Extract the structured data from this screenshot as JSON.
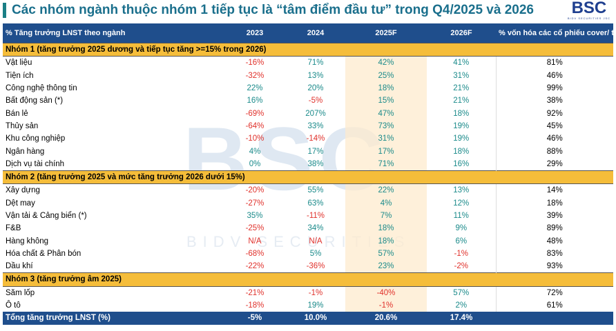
{
  "header": {
    "title": "Các nhóm ngành thuộc nhóm 1 tiếp tục là “tâm điểm đầu tư” trong Q4/2025 và 2026",
    "logo": "BSC",
    "logo_subtitle": "BIDV SECURITIES JSC"
  },
  "watermark": {
    "logo": "BSC",
    "text": "BIDV SECURITIES"
  },
  "table": {
    "columns": [
      "% Tăng trưởng LNST theo ngành",
      "2023",
      "2024",
      "2025F",
      "2026F",
      "% vốn hóa các cổ phiếu cover/ tổng vốn hóa ngành đó"
    ],
    "groups": [
      {
        "label": "Nhóm 1 (tăng trưởng 2025 dương và tiếp tục tăng >=15% trong 2026)",
        "rows": [
          [
            "Vật liệu",
            "-16%",
            "71%",
            "42%",
            "41%",
            "81%"
          ],
          [
            "Tiện ích",
            "-32%",
            "13%",
            "25%",
            "31%",
            "46%"
          ],
          [
            "Công nghệ thông tin",
            "22%",
            "20%",
            "18%",
            "21%",
            "99%"
          ],
          [
            "Bất động sản (*)",
            "16%",
            "-5%",
            "15%",
            "21%",
            "38%"
          ],
          [
            "Bán lẻ",
            "-69%",
            "207%",
            "47%",
            "18%",
            "92%"
          ],
          [
            "Thủy sản",
            "-64%",
            "33%",
            "73%",
            "19%",
            "45%"
          ],
          [
            "Khu công nghiệp",
            "-10%",
            "-14%",
            "31%",
            "19%",
            "46%"
          ],
          [
            "Ngân hàng",
            "4%",
            "17%",
            "17%",
            "18%",
            "88%"
          ],
          [
            "Dịch vụ tài chính",
            "0%",
            "38%",
            "71%",
            "16%",
            "29%"
          ]
        ]
      },
      {
        "label": "Nhóm 2 (tăng trưởng 2025 và mức tăng trưởng 2026 dưới 15%)",
        "rows": [
          [
            "Xây dựng",
            "-20%",
            "55%",
            "22%",
            "13%",
            "14%"
          ],
          [
            "Dệt may",
            "-27%",
            "63%",
            "4%",
            "12%",
            "18%"
          ],
          [
            "Vận tải & Cảng biển (*)",
            "35%",
            "-11%",
            "7%",
            "11%",
            "39%"
          ],
          [
            "F&B",
            "-25%",
            "34%",
            "18%",
            "9%",
            "89%"
          ],
          [
            "Hàng không",
            "N/A",
            "N/A",
            "18%",
            "6%",
            "48%"
          ],
          [
            "Hóa chất & Phân bón",
            "-68%",
            "5%",
            "57%",
            "-1%",
            "83%"
          ],
          [
            "Dầu khí",
            "-22%",
            "-36%",
            "23%",
            "-2%",
            "93%"
          ]
        ]
      },
      {
        "label": "Nhóm 3 (tăng trưởng âm 2025)",
        "rows": [
          [
            "Săm lốp",
            "-21%",
            "-1%",
            "-40%",
            "57%",
            "72%"
          ],
          [
            "Ô tô",
            "-18%",
            "19%",
            "-1%",
            "2%",
            "61%"
          ]
        ]
      }
    ],
    "total": [
      "Tổng tăng trưởng LNST (%)",
      "-5%",
      "10.0%",
      "20.6%",
      "17.4%"
    ]
  }
}
